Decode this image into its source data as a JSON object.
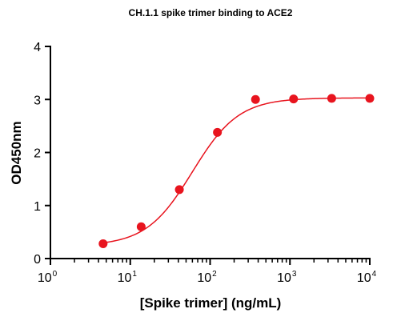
{
  "chart_data": {
    "type": "scatter",
    "title": "CH.1.1 spike trimer binding to ACE2",
    "xlabel": "[Spike trimer] (ng/mL)",
    "ylabel": "OD450nm",
    "x_scale": "log10",
    "xlim": [
      1,
      10000
    ],
    "ylim": [
      0,
      4
    ],
    "x_ticks": [
      {
        "base": "10",
        "exp": "0"
      },
      {
        "base": "10",
        "exp": "1"
      },
      {
        "base": "10",
        "exp": "2"
      },
      {
        "base": "10",
        "exp": "3"
      },
      {
        "base": "10",
        "exp": "4"
      }
    ],
    "y_ticks": [
      "0",
      "1",
      "2",
      "3",
      "4"
    ],
    "grid": false,
    "series": [
      {
        "color": "#e8141e",
        "marker": "circle",
        "x": [
          4.57,
          13.7,
          41.2,
          123.5,
          370.4,
          1111,
          3333,
          10000
        ],
        "y": [
          0.28,
          0.6,
          1.3,
          2.38,
          3.0,
          3.01,
          3.02,
          3.02
        ],
        "fit": {
          "model": "4PL",
          "bottom": 0.24,
          "top": 3.03,
          "ec50": 60,
          "hill": 1.5
        }
      }
    ]
  }
}
